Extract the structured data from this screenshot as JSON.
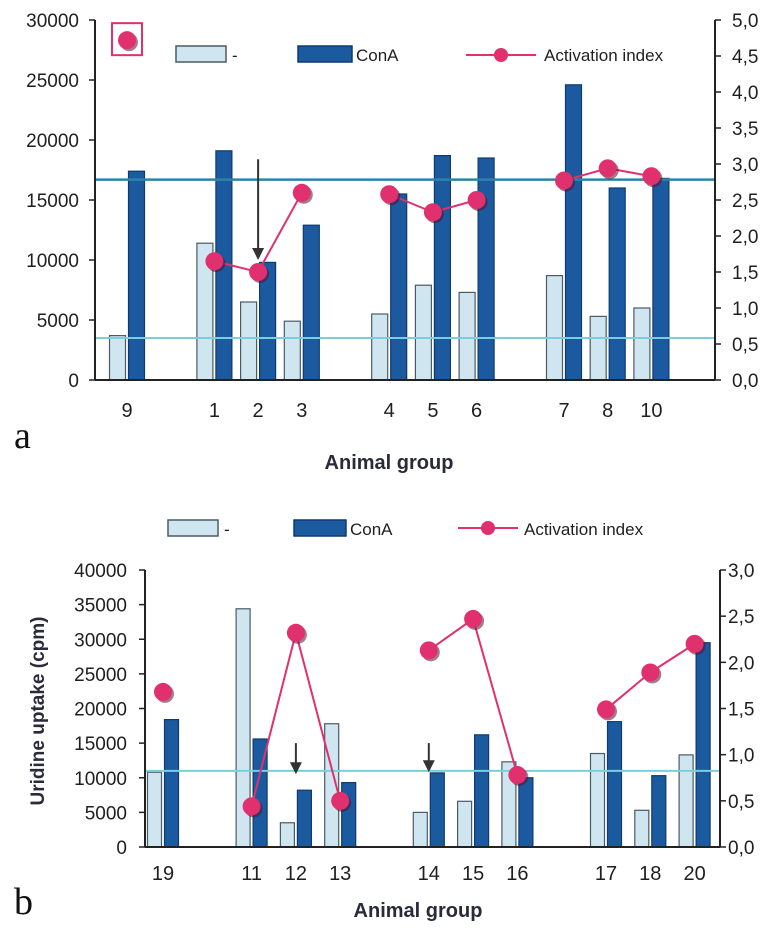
{
  "colors": {
    "light_bar": "#cfe6f0",
    "light_bar_edge": "#4a5a66",
    "dark_bar": "#1c5aa0",
    "dark_bar_edge": "#0f3a70",
    "index_line": "#e0306e",
    "index_dot": "#e0306e",
    "ref_dark": "#2e82a8",
    "ref_light": "#79d0dc",
    "axis": "#222222"
  },
  "legend": {
    "light_label": "-",
    "dark_label": "ConA",
    "line_label": "Activation index"
  },
  "chart_data": [
    {
      "type": "bar",
      "panel_label": "a",
      "xlabel": "Animal group",
      "ylabel": "",
      "categories": [
        "9",
        "1",
        "2",
        "3",
        "4",
        "5",
        "6",
        "7",
        "8",
        "10"
      ],
      "slots": [
        0,
        2,
        3,
        4,
        6,
        7,
        8,
        10,
        11,
        12
      ],
      "ylim": [
        0,
        30000
      ],
      "y2lim": [
        0,
        5.0
      ],
      "yticks": [
        "0",
        "5000",
        "10000",
        "15000",
        "20000",
        "25000",
        "30000"
      ],
      "y2ticks": [
        "0,0",
        "0,5",
        "1,0",
        "1,5",
        "2,0",
        "2,5",
        "3,0",
        "3,5",
        "4,0",
        "4,5",
        "5,0"
      ],
      "series": [
        {
          "name": "-",
          "kind": "bar",
          "values": [
            3700,
            11400,
            6500,
            4900,
            5500,
            7900,
            7300,
            8700,
            5300,
            6000
          ]
        },
        {
          "name": "ConA",
          "kind": "bar",
          "values": [
            17400,
            19100,
            9800,
            12900,
            15500,
            18700,
            18500,
            24600,
            16000,
            16800
          ]
        },
        {
          "name": "Activation index",
          "kind": "line",
          "axis": "right",
          "segments": [
            [
              1,
              2,
              3
            ],
            [
              4,
              5,
              6
            ],
            [
              7,
              8,
              9
            ]
          ],
          "values": [
            4.72,
            1.65,
            1.5,
            2.6,
            2.58,
            2.33,
            2.5,
            2.77,
            2.94,
            2.83
          ]
        }
      ],
      "reference_lines": [
        {
          "value": 16700,
          "style": "dark"
        },
        {
          "value": 3500,
          "style": "light"
        }
      ],
      "arrows": [
        {
          "category": "2",
          "from": 18400,
          "to": 10000
        }
      ],
      "boxed_marker": {
        "category": "9"
      },
      "grid": false,
      "legend_position": "top"
    },
    {
      "type": "bar",
      "panel_label": "b",
      "xlabel": "Animal group",
      "ylabel": "Uridine uptake (cpm)",
      "categories": [
        "19",
        "11",
        "12",
        "13",
        "14",
        "15",
        "16",
        "17",
        "18",
        "20"
      ],
      "slots": [
        0,
        2,
        3,
        4,
        6,
        7,
        8,
        10,
        11,
        12
      ],
      "ylim": [
        0,
        40000
      ],
      "y2lim": [
        0,
        3.0
      ],
      "yticks": [
        "0",
        "5000",
        "10000",
        "15000",
        "20000",
        "25000",
        "30000",
        "35000",
        "40000"
      ],
      "y2ticks": [
        "0,0",
        "0,5",
        "1,0",
        "1,5",
        "2,0",
        "2,5",
        "3,0"
      ],
      "series": [
        {
          "name": "-",
          "kind": "bar",
          "values": [
            10800,
            34400,
            3500,
            17800,
            5000,
            6600,
            12300,
            13500,
            5300,
            13300
          ]
        },
        {
          "name": "ConA",
          "kind": "bar",
          "values": [
            18400,
            15600,
            8200,
            9300,
            10700,
            16200,
            10000,
            18100,
            10300,
            29500
          ]
        },
        {
          "name": "Activation index",
          "kind": "line",
          "axis": "right",
          "segments": [
            [
              1,
              2,
              3
            ],
            [
              4,
              5,
              6
            ],
            [
              7,
              8,
              9
            ]
          ],
          "values": [
            1.68,
            0.44,
            2.32,
            0.5,
            2.13,
            2.47,
            0.78,
            1.49,
            1.89,
            2.2
          ]
        }
      ],
      "reference_lines": [
        {
          "value": 11000,
          "style": "light"
        }
      ],
      "arrows": [
        {
          "category": "12",
          "from": 15000,
          "to": 10500
        },
        {
          "category": "14",
          "from": 15000,
          "to": 10800
        }
      ],
      "grid": false,
      "legend_position": "top"
    }
  ]
}
